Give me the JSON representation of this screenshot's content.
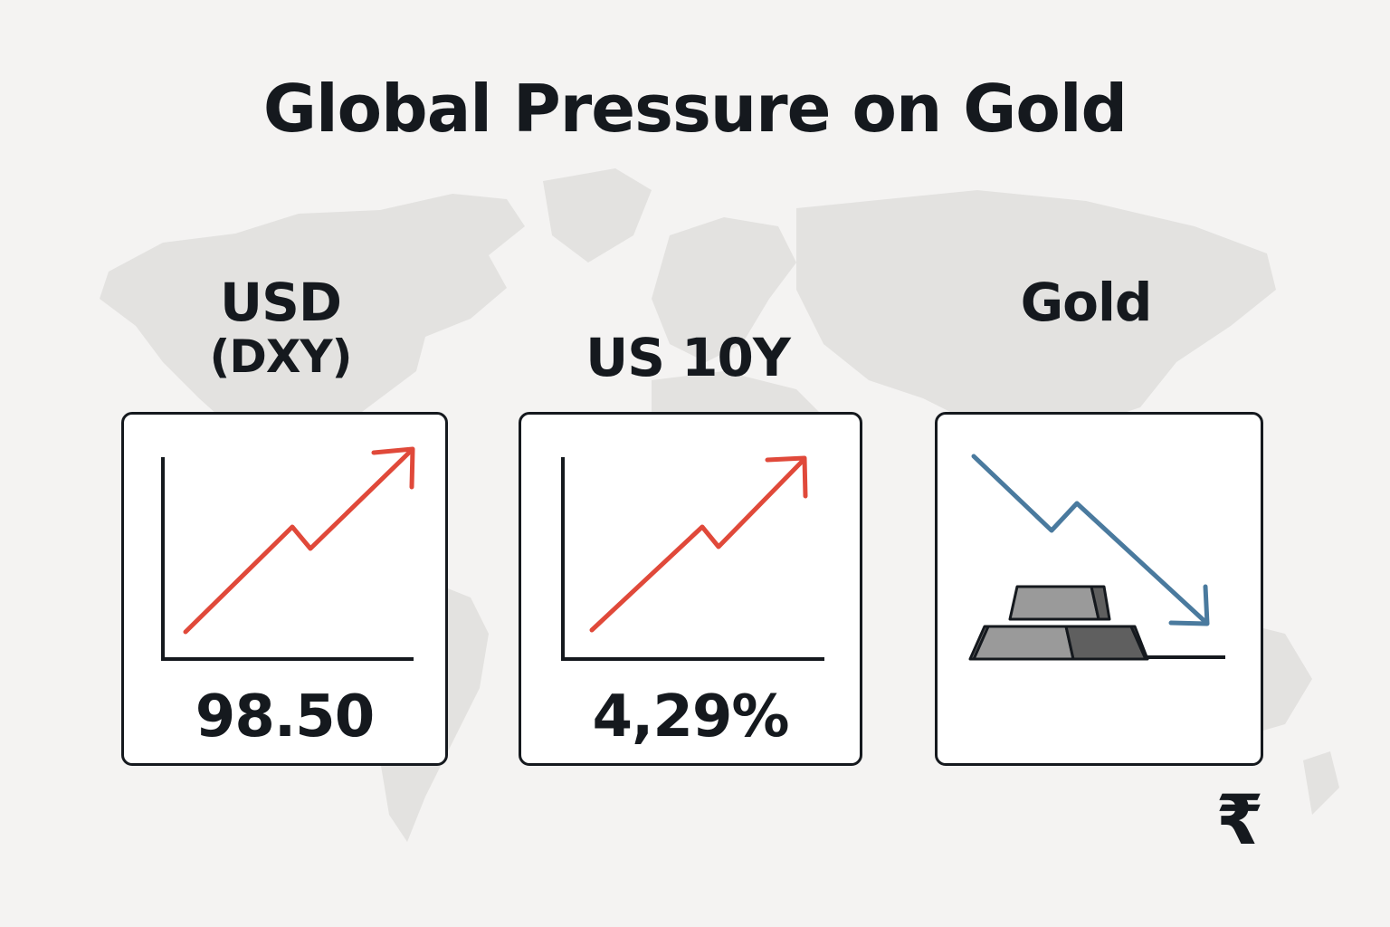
{
  "title": "Global Pressure on Gold",
  "background": {
    "map_color": "#e3e2e0"
  },
  "cards": [
    {
      "label": "USD",
      "sublabel": "(DXY)",
      "value": "98.50",
      "trend": "up",
      "icon": "uptrend-chart-icon",
      "line_color": "#e0493a"
    },
    {
      "label": "US 10Y",
      "value": "4,29%",
      "trend": "up",
      "icon": "uptrend-chart-icon",
      "line_color": "#e0493a"
    },
    {
      "label": "Gold",
      "value": "",
      "trend": "down",
      "icon": "downtrend-chart-with-gold-bars-icon",
      "line_color": "#4a7a9e"
    }
  ],
  "currency_symbol": "₹",
  "colors": {
    "text": "#15191e",
    "background": "#f4f3f2",
    "up_trend": "#e0493a",
    "down_trend": "#4a7a9e",
    "bar_light": "#9a9a9a",
    "bar_dark": "#5f5f5f"
  }
}
